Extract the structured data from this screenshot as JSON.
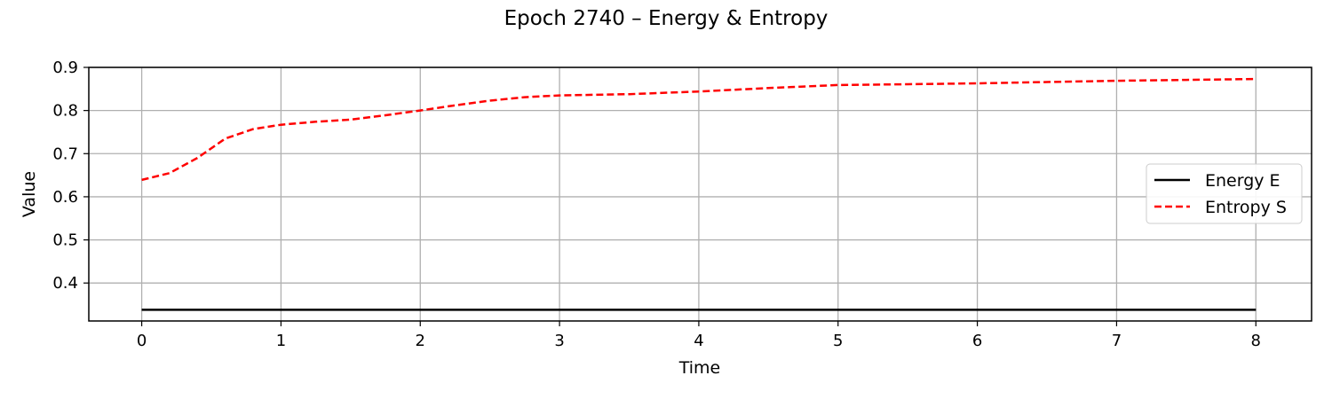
{
  "chart_data": {
    "type": "line",
    "title": "Epoch 2740 – Energy & Entropy",
    "xlabel": "Time",
    "ylabel": "Value",
    "xlim": [
      -0.38,
      8.4
    ],
    "ylim": [
      0.312,
      0.9
    ],
    "xticks": [
      0,
      1,
      2,
      3,
      4,
      5,
      6,
      7,
      8
    ],
    "yticks": [
      0.4,
      0.5,
      0.6,
      0.7,
      0.8,
      0.9
    ],
    "grid": true,
    "legend_position": "center-right",
    "series": [
      {
        "name": "Energy E",
        "color": "#000000",
        "style": "solid",
        "x": [
          0,
          1,
          2,
          3,
          4,
          5,
          6,
          7,
          8
        ],
        "y": [
          0.338,
          0.338,
          0.338,
          0.338,
          0.338,
          0.338,
          0.338,
          0.338,
          0.338
        ]
      },
      {
        "name": "Entropy S",
        "color": "#ff0000",
        "style": "dashed",
        "x": [
          0,
          0.2,
          0.4,
          0.6,
          0.8,
          1.0,
          1.25,
          1.5,
          1.75,
          2.0,
          2.25,
          2.5,
          2.75,
          3.0,
          3.5,
          4.0,
          4.5,
          5.0,
          5.5,
          6.0,
          6.5,
          7.0,
          7.5,
          8.0
        ],
        "y": [
          0.639,
          0.655,
          0.69,
          0.735,
          0.757,
          0.767,
          0.774,
          0.779,
          0.789,
          0.8,
          0.812,
          0.823,
          0.831,
          0.835,
          0.838,
          0.844,
          0.852,
          0.859,
          0.861,
          0.863,
          0.866,
          0.869,
          0.871,
          0.873
        ]
      }
    ]
  }
}
